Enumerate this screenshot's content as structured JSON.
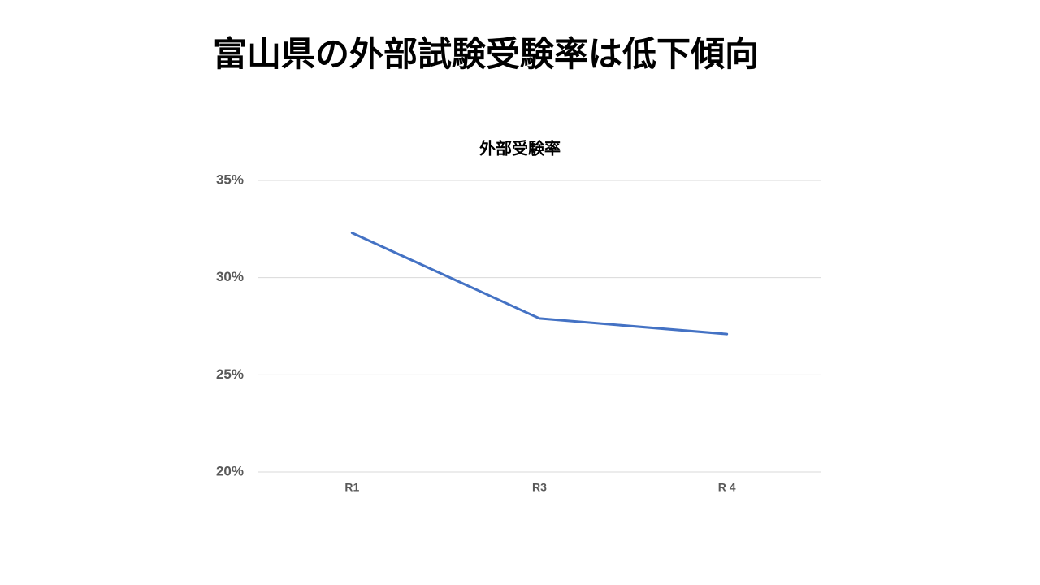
{
  "slide_title": "富山県の外部試験受験率は低下傾向",
  "chart_data": {
    "type": "line",
    "title": "外部受験率",
    "categories": [
      "R1",
      "R3",
      "R 4"
    ],
    "series": [
      {
        "name": "外部受験率",
        "color": "#4472c4",
        "values": [
          32.3,
          27.9,
          27.1
        ]
      }
    ],
    "ylim": [
      20,
      35
    ],
    "yticks": [
      {
        "value": 20,
        "label": "20%"
      },
      {
        "value": 25,
        "label": "25%"
      },
      {
        "value": 30,
        "label": "30%"
      },
      {
        "value": 35,
        "label": "35%"
      }
    ],
    "grid": true
  }
}
